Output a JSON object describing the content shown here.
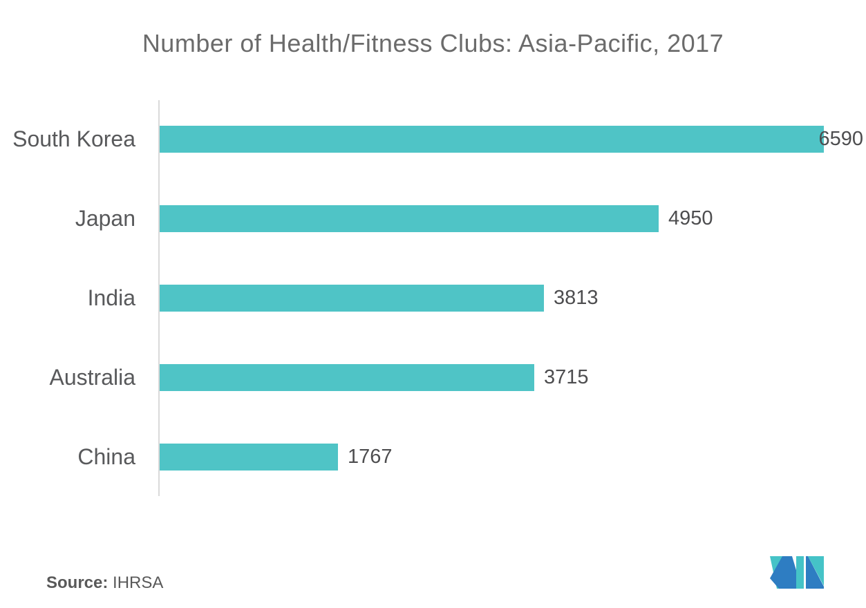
{
  "chart_data": {
    "type": "bar",
    "orientation": "horizontal",
    "title": "Number of Health/Fitness Clubs: Asia-Pacific, 2017",
    "categories": [
      "South Korea",
      "Japan",
      "India",
      "Australia",
      "China"
    ],
    "values": [
      6590,
      4950,
      3813,
      3715,
      1767
    ],
    "xlabel": "",
    "ylabel": "",
    "xlim": [
      0,
      6960
    ],
    "grid": false,
    "legend": false,
    "value_labels_shown": true,
    "bar_color": "#4fc4c6"
  },
  "footer": {
    "source_label": "Source:",
    "source_value": "IHRSA"
  },
  "logo": {
    "name": "mordor-intelligence-logo",
    "teal": "#45c3c7",
    "blue": "#2e7dc2"
  },
  "colors": {
    "title_text": "#6b6b6b",
    "category_text": "#58595b",
    "value_text": "#4d4d4f",
    "axis_line": "#d9d9d9",
    "background": "#ffffff"
  }
}
